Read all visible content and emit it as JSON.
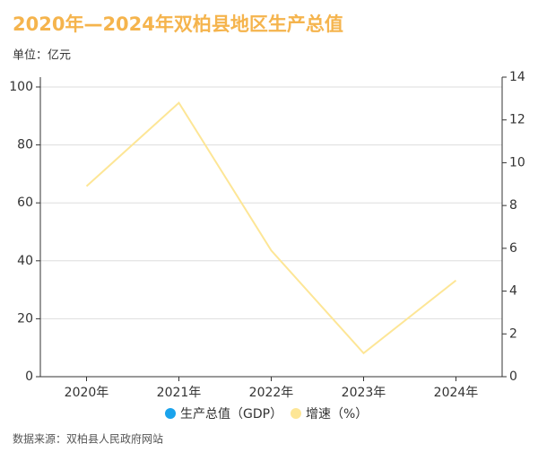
{
  "chart_data": {
    "type": "bar_line",
    "title": "2020年—2024年双柏县地区生产总值",
    "unit_label": "单位：亿元",
    "source": "数据来源：双柏县人民政府网站",
    "categories": [
      "2020年",
      "2021年",
      "2022年",
      "2023年",
      "2024年"
    ],
    "series": [
      {
        "name": "生产总值（GDP）",
        "color": "#1aa3ec",
        "values": [
          null,
          null,
          null,
          null,
          null
        ]
      },
      {
        "name": "增速（%）",
        "color": "#fde696",
        "axis": "y2",
        "values": [
          8.9,
          12.8,
          5.9,
          1.1,
          4.5
        ]
      }
    ],
    "ylim": [
      0,
      103.4
    ],
    "yticks": [
      0,
      20,
      40,
      60,
      80,
      100
    ],
    "y2lim": [
      0,
      14
    ],
    "y2ticks": [
      0,
      2,
      4,
      6,
      8,
      10,
      12,
      14
    ],
    "grid": true,
    "legend": "bottom"
  }
}
